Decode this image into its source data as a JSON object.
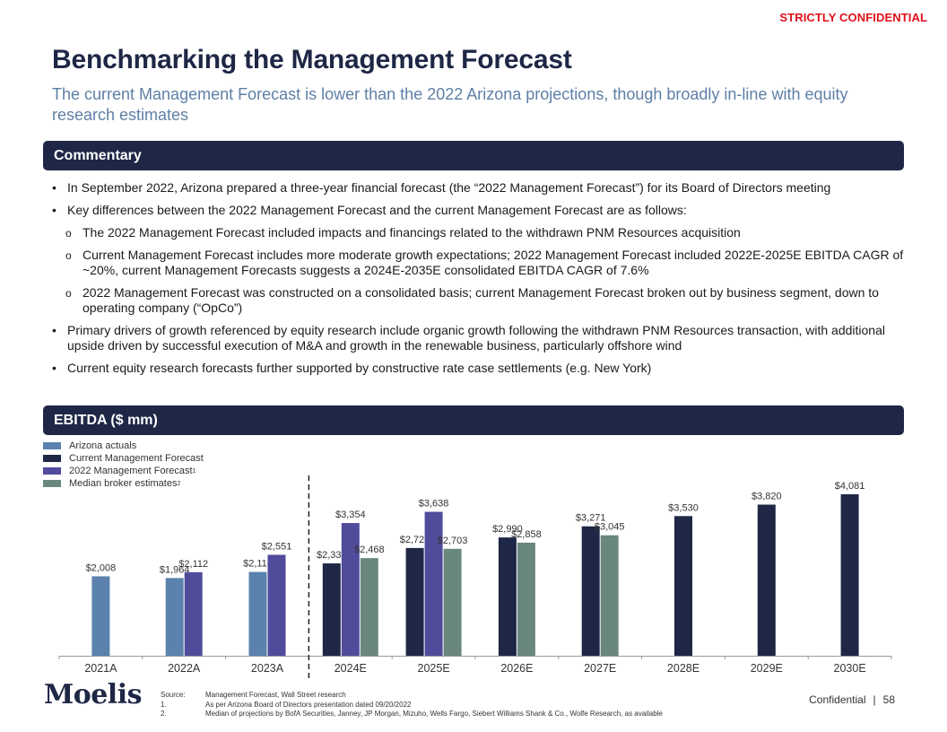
{
  "header": {
    "confidential": "STRICTLY CONFIDENTIAL",
    "title": "Benchmarking the Management Forecast",
    "subtitle": "The current Management Forecast is lower than the 2022 Arizona projections, though broadly in-line with equity research estimates"
  },
  "commentary": {
    "heading": "Commentary",
    "bullet_mark": "•",
    "sub_mark": "o",
    "items": [
      "In September 2022, Arizona prepared a three-year financial forecast (the “2022 Management Forecast”) for its Board of Directors meeting",
      "Key differences between the 2022 Management Forecast and the current Management Forecast are as follows:"
    ],
    "sub_items": [
      "The 2022 Management Forecast included impacts and financings related to the withdrawn PNM Resources acquisition",
      "Current Management Forecast includes more moderate growth expectations; 2022 Management Forecast included 2022E-2025E EBITDA CAGR of ~20%, current Management Forecasts suggests a 2024E-2035E consolidated EBITDA CAGR of 7.6%",
      "2022 Management Forecast was constructed on a consolidated basis; current Management Forecast broken out by business segment, down to operating company (“OpCo”)"
    ],
    "tail_items": [
      "Primary drivers of growth referenced by equity research include organic growth following the withdrawn PNM Resources transaction, with additional upside driven by successful execution of M&A and growth in the renewable business, particularly offshore wind",
      "Current equity research forecasts further supported by constructive rate case settlements (e.g. New York)"
    ]
  },
  "ebitda_section": {
    "heading": "EBITDA ($ mm)"
  },
  "chart_data": {
    "type": "bar",
    "title": "EBITDA ($ mm)",
    "xlabel": "",
    "ylabel": "",
    "ylim": [
      0,
      4081
    ],
    "grid": false,
    "legend_position": "top-left",
    "categories": [
      "2021A",
      "2022A",
      "2023A",
      "2024E",
      "2025E",
      "2026E",
      "2027E",
      "2028E",
      "2029E",
      "2030E"
    ],
    "divider_after_category": "2023A",
    "value_prefix": "$",
    "series": [
      {
        "name": "Arizona actuals",
        "superscript": "",
        "color": "#5b82ad",
        "values": [
          2008,
          1964,
          2118,
          null,
          null,
          null,
          null,
          null,
          null,
          null
        ]
      },
      {
        "name": "Current Management Forecast",
        "superscript": "",
        "color": "#1f2746",
        "values": [
          null,
          null,
          null,
          2334,
          2723,
          2990,
          3271,
          3530,
          3820,
          4081
        ]
      },
      {
        "name": "2022 Management Forecast",
        "superscript": "1",
        "color": "#514b9c",
        "values": [
          null,
          2112,
          2551,
          3354,
          3638,
          null,
          null,
          null,
          null,
          null
        ]
      },
      {
        "name": "Median broker estimates",
        "superscript": "2",
        "color": "#69877f",
        "values": [
          null,
          null,
          null,
          2468,
          2703,
          2858,
          3045,
          null,
          null,
          null
        ]
      }
    ]
  },
  "footer": {
    "logo": "Moelis",
    "footnotes": [
      {
        "key": "Source:",
        "text": "Management Forecast, Wall Street research"
      },
      {
        "key": "1.",
        "text": "As per Arizona Board of Directors presentation dated 09/20/2022"
      },
      {
        "key": "2.",
        "text": "Median of projections by BofA Securities, Janney, JP Morgan, Mizuho, Wells Fargo, Siebert Williams Shank & Co., Wolfe Research, as available"
      }
    ],
    "confidential": "Confidential",
    "separator": "|",
    "page_number": "58"
  }
}
